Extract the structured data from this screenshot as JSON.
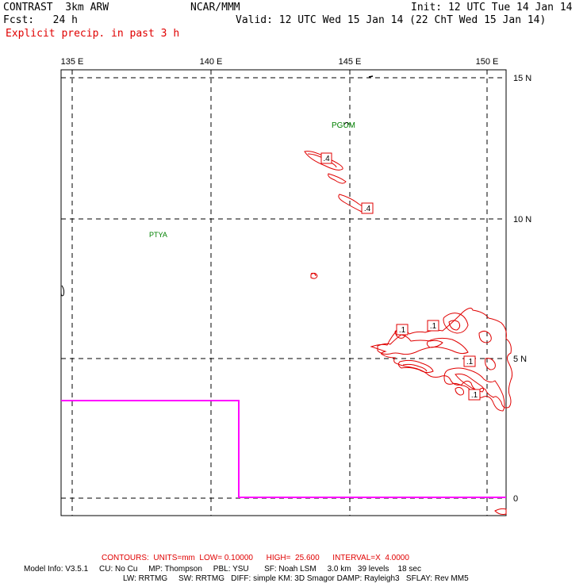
{
  "header": {
    "model": "CONTRAST  3km ARW",
    "org": "NCAR/MMM",
    "init": "Init: 12 UTC Tue 14 Jan 14",
    "fcst": "Fcst:   24 h",
    "valid": "Valid: 12 UTC Wed 15 Jan 14 (22 ChT Wed 15 Jan 14)",
    "field": "Explicit precip. in past 3 h"
  },
  "map": {
    "lon_labels": [
      "135 E",
      "140 E",
      "145 E",
      "150 E"
    ],
    "lat_labels": [
      "15 N",
      "10 N",
      "5 N",
      "0"
    ],
    "lon_values": [
      135,
      140,
      145,
      150
    ],
    "lat_values": [
      15,
      10,
      5,
      0
    ],
    "stations": [
      "PGUM",
      "PTYA"
    ],
    "contour_labels": [
      ".4",
      ".4",
      ".1",
      ".1",
      ".1",
      ".1"
    ],
    "colors": {
      "contour": "#e00000",
      "boundary": "#ff00ff",
      "station": "#008000",
      "grid": "#000000"
    }
  },
  "footer": {
    "contours": "CONTOURS:  UNITS=mm  LOW= 0.10000      HIGH=  25.600      INTERVAL=X  4.0000",
    "model_info": "Model Info: V3.5.1     CU: No Cu     MP: Thompson     PBL: YSU       SF: Noah LSM     3.0 km   39 levels    18 sec",
    "model_info2": "LW: RRTMG     SW: RRTMG   DIFF: simple KM: 3D Smagor DAMP: Rayleigh3   SFLAY: Rev MM5"
  }
}
